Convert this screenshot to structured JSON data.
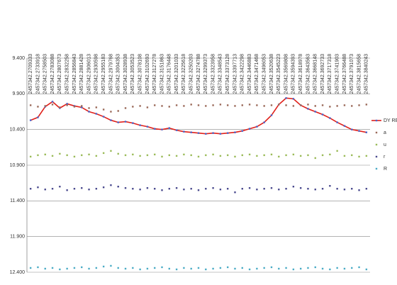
{
  "chart_data": {
    "type": "line",
    "categories": [
      "2457342.2709333",
      "2457342.2733918",
      "2457342.2758503",
      "2457342.2783088",
      "2457342.2807673",
      "2457342.2832258",
      "2457342.2856843",
      "2457342.2881428",
      "2457342.2906013",
      "2457342.2930598",
      "2457342.2955183",
      "2457342.2979768",
      "2457342.3004353",
      "2457342.3028938",
      "2457342.3053523",
      "2457342.3078108",
      "2457342.3102693",
      "2457342.3127278",
      "2457342.3151863",
      "2457342.3176448",
      "2457342.3201033",
      "2457342.3225618",
      "2457342.3250203",
      "2457342.3274788",
      "2457342.3299373",
      "2457342.3323958",
      "2457342.3348543",
      "2457342.3373128",
      "2457342.3397713",
      "2457342.3422298",
      "2457342.3446883",
      "2457342.3471468",
      "2457342.3496053",
      "2457342.3520638",
      "2457342.3545223",
      "2457342.3569808",
      "2457342.3594393",
      "2457342.3618978",
      "2457342.3643563",
      "2457342.3668148",
      "2457342.3692733",
      "2457342.3717318",
      "2457342.3741903",
      "2457342.3766488",
      "2457342.3791073",
      "2457342.3815658",
      "2457342.3840243"
    ],
    "series": [
      {
        "name": "DY REG",
        "color": "#e0201a",
        "marker_color": "#4a63c8",
        "line": true,
        "values": [
          10270,
          10230,
          10080,
          10010,
          10100,
          10040,
          10070,
          10090,
          10150,
          10180,
          10220,
          10270,
          10300,
          10290,
          10310,
          10340,
          10360,
          10390,
          10400,
          10380,
          10410,
          10430,
          10440,
          10450,
          10460,
          10450,
          10460,
          10450,
          10440,
          10420,
          10390,
          10360,
          10300,
          10200,
          10050,
          9960,
          9970,
          10060,
          10110,
          10150,
          10190,
          10240,
          10300,
          10350,
          10400,
          10420,
          10440
        ]
      },
      {
        "name": "a",
        "color": "#9b6a5a",
        "line": false,
        "values": [
          10060,
          10080,
          10070,
          10050,
          10090,
          10060,
          10080,
          10070,
          10100,
          10090,
          10120,
          10150,
          10140,
          10100,
          10080,
          10070,
          10090,
          10060,
          10070,
          10080,
          10060,
          10070,
          10050,
          10060,
          10070,
          10060,
          10050,
          10060,
          10070,
          10060,
          10050,
          10060,
          10070,
          10060,
          10050,
          10060,
          10070,
          10060,
          10050,
          10070,
          10060,
          10080,
          10070,
          10060,
          10070,
          10060,
          10050
        ]
      },
      {
        "name": "u",
        "color": "#9bbb59",
        "line": false,
        "values": [
          10780,
          10760,
          10750,
          10770,
          10740,
          10760,
          10780,
          10760,
          10750,
          10770,
          10730,
          10700,
          10740,
          10760,
          10750,
          10770,
          10760,
          10750,
          10780,
          10760,
          10770,
          10750,
          10760,
          10780,
          10760,
          10750,
          10770,
          10760,
          10780,
          10760,
          10750,
          10770,
          10760,
          10750,
          10780,
          10760,
          10750,
          10770,
          10760,
          10800,
          10760,
          10750,
          10700,
          10770,
          10760,
          10780,
          10770
        ]
      },
      {
        "name": "r",
        "color": "#4b4b8f",
        "line": false,
        "values": [
          11230,
          11210,
          11240,
          11230,
          11200,
          11250,
          11230,
          11220,
          11240,
          11230,
          11210,
          11180,
          11200,
          11220,
          11230,
          11240,
          11220,
          11230,
          11250,
          11230,
          11220,
          11240,
          11230,
          11250,
          11230,
          11220,
          11240,
          11230,
          11280,
          11230,
          11220,
          11240,
          11230,
          11220,
          11240,
          11230,
          11200,
          11220,
          11230,
          11240,
          11230,
          11190,
          11230,
          11240,
          11230,
          11250,
          11230
        ]
      },
      {
        "name": "R",
        "color": "#4bacc6",
        "line": false,
        "values": [
          12340,
          12330,
          12350,
          12340,
          12360,
          12350,
          12340,
          12330,
          12350,
          12340,
          12320,
          12310,
          12340,
          12350,
          12340,
          12360,
          12350,
          12340,
          12330,
          12350,
          12360,
          12340,
          12350,
          12340,
          12360,
          12350,
          12340,
          12330,
          12350,
          12340,
          12360,
          12350,
          12340,
          12330,
          12350,
          12340,
          12360,
          12350,
          12340,
          12330,
          12350,
          12360,
          12340,
          12350,
          12340,
          12330,
          12360
        ]
      }
    ],
    "ylim": [
      9400,
      12400
    ],
    "y_reversed": true,
    "yticks": [
      {
        "value": 9400,
        "label": "9.400"
      },
      {
        "value": 9900,
        "label": "9.900"
      },
      {
        "value": 10400,
        "label": "10.400"
      },
      {
        "value": 10900,
        "label": "10.900"
      },
      {
        "value": 11400,
        "label": "11.400"
      },
      {
        "value": 11900,
        "label": "11.900"
      },
      {
        "value": 12400,
        "label": "12.400"
      }
    ],
    "grid": true,
    "legend": "right"
  }
}
